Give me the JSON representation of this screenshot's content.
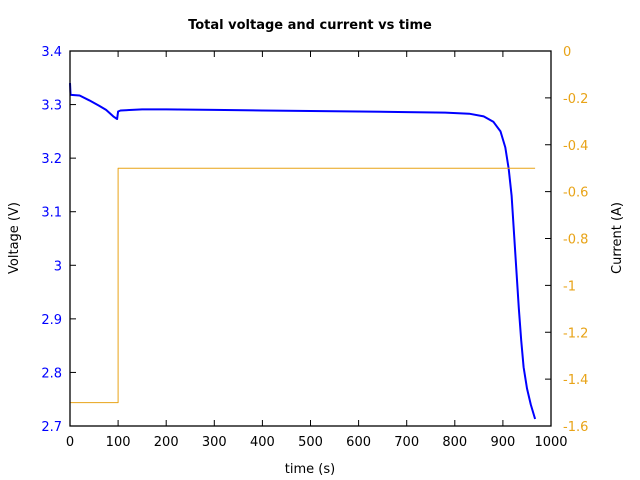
{
  "chart_data": {
    "type": "line",
    "title": "Total voltage and current vs time",
    "xlabel": "time (s)",
    "ylabel": "Voltage (V)",
    "y2label": "Current (A)",
    "xlim": [
      0,
      1000
    ],
    "ylim": [
      2.7,
      3.4
    ],
    "y2lim": [
      -1.6,
      0
    ],
    "grid": false,
    "legend": null,
    "x_ticks": [
      "0",
      "100",
      "200",
      "300",
      "400",
      "500",
      "600",
      "700",
      "800",
      "900",
      "1000"
    ],
    "y_ticks": [
      "3.4",
      "3.3",
      "3.2",
      "3.1",
      "3",
      "2.9",
      "2.8",
      "2.7"
    ],
    "y2_ticks": [
      "0",
      "-0.2",
      "-0.4",
      "-0.6",
      "-0.8",
      "-1",
      "-1.2",
      "-1.4",
      "-1.6"
    ],
    "series": [
      {
        "name": "Voltage",
        "axis": "left",
        "color": "#0000ff",
        "x": [
          0,
          1,
          2,
          20,
          40,
          60,
          75,
          90,
          98,
          100,
          105,
          150,
          200,
          300,
          400,
          500,
          600,
          700,
          780,
          830,
          860,
          880,
          895,
          905,
          912,
          918,
          923,
          928,
          933,
          938,
          943,
          950,
          958,
          967
        ],
        "values": [
          3.34,
          3.32,
          3.318,
          3.317,
          3.308,
          3.298,
          3.29,
          3.278,
          3.273,
          3.287,
          3.289,
          3.291,
          3.291,
          3.29,
          3.289,
          3.288,
          3.287,
          3.286,
          3.285,
          3.283,
          3.278,
          3.268,
          3.25,
          3.22,
          3.18,
          3.13,
          3.06,
          2.99,
          2.92,
          2.86,
          2.81,
          2.77,
          2.74,
          2.713
        ]
      },
      {
        "name": "Current",
        "axis": "right",
        "color": "#e8a317",
        "x": [
          0,
          100,
          100,
          967
        ],
        "values": [
          -1.5,
          -1.5,
          -0.5,
          -0.5
        ]
      }
    ]
  },
  "colors": {
    "voltage": "#0000ff",
    "current": "#e8a317",
    "left_tick_text": "#0000ff",
    "right_tick_text": "#e8a317",
    "axis": "#000000"
  }
}
